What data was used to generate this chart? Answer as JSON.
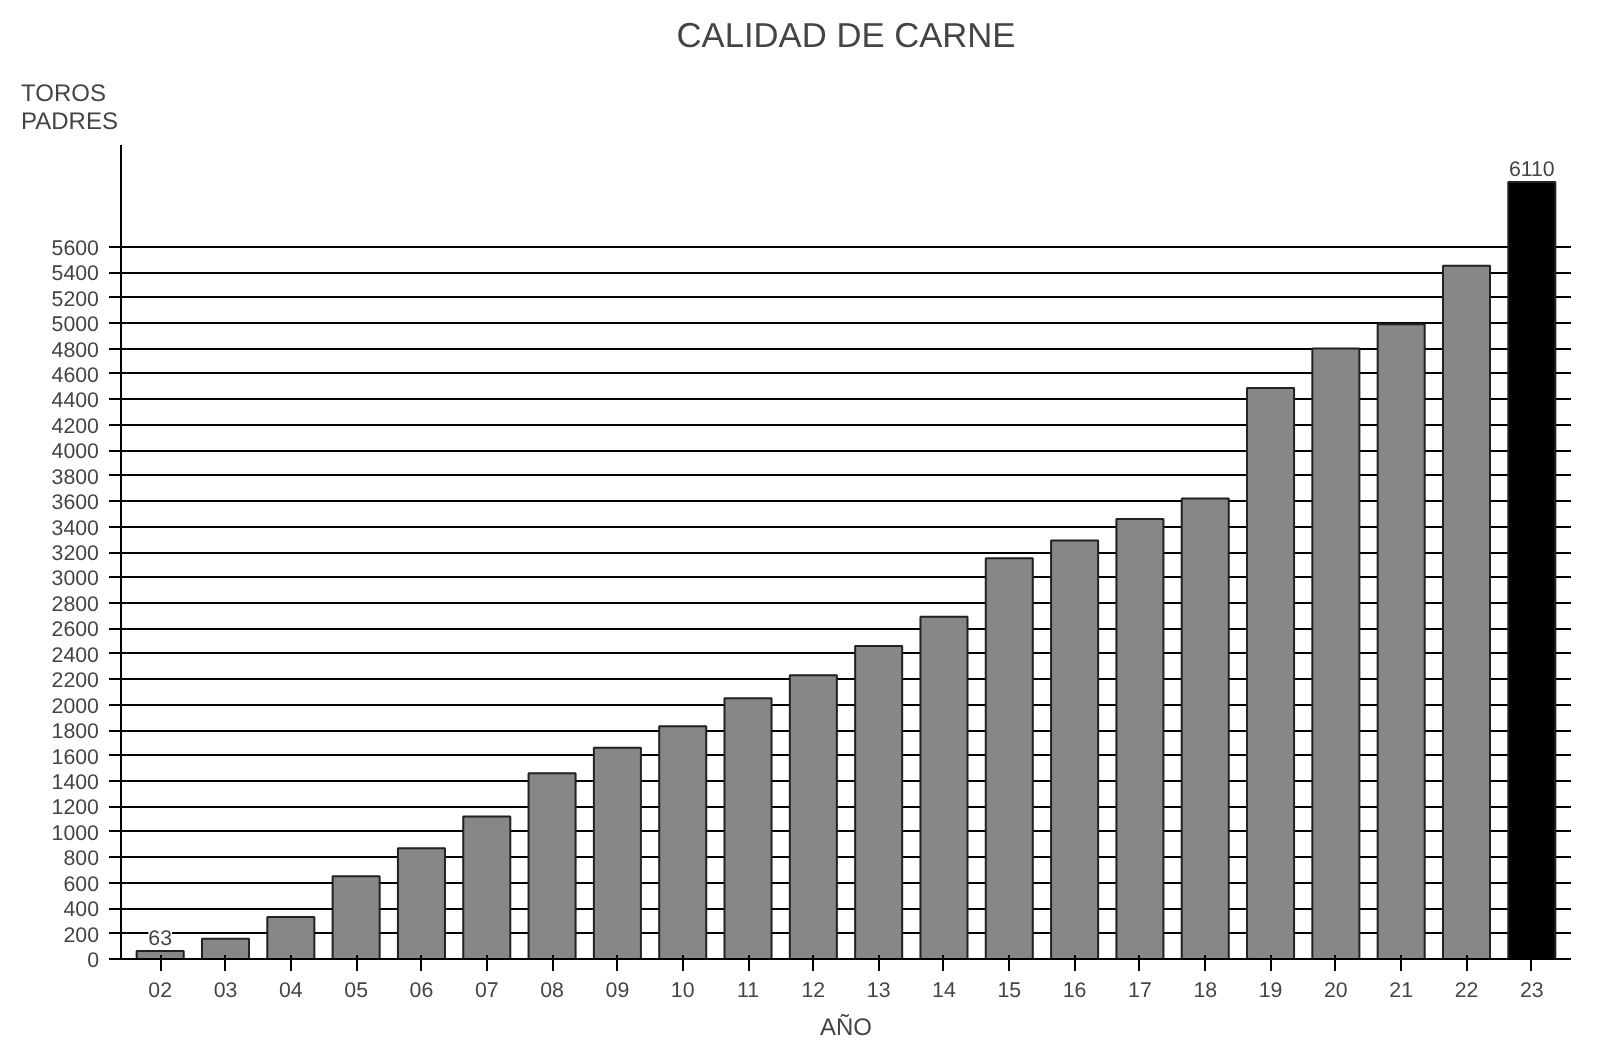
{
  "chart_data": {
    "type": "bar",
    "title": "CALIDAD DE CARNE",
    "xlabel": "AÑO",
    "ylabel": "TOROS\nPADRES",
    "categories": [
      "02",
      "03",
      "04",
      "05",
      "06",
      "07",
      "08",
      "09",
      "10",
      "11",
      "12",
      "13",
      "14",
      "15",
      "16",
      "17",
      "18",
      "19",
      "20",
      "21",
      "22",
      "23"
    ],
    "values": [
      63,
      160,
      330,
      650,
      870,
      1120,
      1460,
      1660,
      1830,
      2050,
      2230,
      2460,
      2690,
      3150,
      3290,
      3460,
      3620,
      4490,
      4800,
      4990,
      5450,
      6110
    ],
    "colors": [
      "#878787",
      "#878787",
      "#878787",
      "#878787",
      "#878787",
      "#878787",
      "#878787",
      "#878787",
      "#878787",
      "#878787",
      "#878787",
      "#878787",
      "#878787",
      "#878787",
      "#878787",
      "#878787",
      "#878787",
      "#878787",
      "#878787",
      "#878787",
      "#878787",
      "#000000"
    ],
    "value_labels": [
      "63",
      null,
      null,
      null,
      null,
      null,
      null,
      null,
      null,
      null,
      null,
      null,
      null,
      null,
      null,
      null,
      null,
      null,
      null,
      null,
      null,
      "6110"
    ],
    "ylim": [
      0,
      6400
    ],
    "yticks": [
      0,
      200,
      400,
      600,
      800,
      1000,
      1200,
      1400,
      1600,
      1800,
      2000,
      2200,
      2400,
      2600,
      2800,
      3000,
      3200,
      3400,
      3600,
      3800,
      4000,
      4200,
      4400,
      4600,
      4800,
      5000,
      5200,
      5400,
      5600
    ],
    "grid": "y"
  }
}
